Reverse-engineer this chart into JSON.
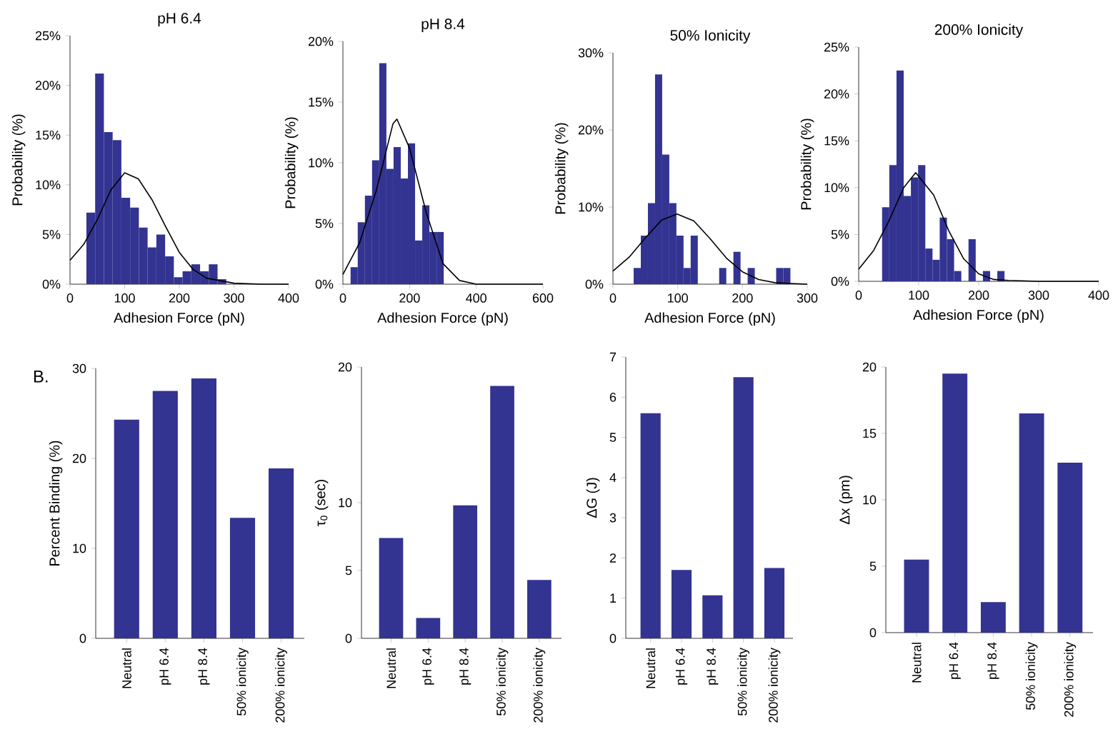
{
  "chart_data": [
    {
      "type": "histogram",
      "title": "pH 6.4",
      "xlabel": "Adhesion Force (pN)",
      "ylabel": "Probability (%)",
      "color": "#333391",
      "bins": [
        30,
        46,
        62,
        78,
        94,
        110,
        126,
        142,
        158,
        174,
        190,
        206,
        222,
        238,
        254,
        270,
        286
      ],
      "values": [
        7.2,
        21.2,
        15.3,
        14.5,
        8.7,
        7.7,
        5.7,
        3.7,
        5.0,
        2.8,
        0.7,
        1.3,
        2.0,
        1.3,
        2.0,
        0.5
      ],
      "series": [
        {
          "type": "line",
          "color": "#000000",
          "x": [
            0,
            25,
            50,
            75,
            100,
            125,
            150,
            175,
            200,
            225,
            250,
            300,
            350,
            400
          ],
          "values": [
            2.4,
            4.0,
            6.5,
            9.5,
            11.2,
            10.6,
            8.5,
            5.8,
            3.2,
            1.5,
            0.6,
            0.1,
            0,
            0
          ]
        }
      ],
      "xlim": [
        0,
        400
      ],
      "xticks": [
        0,
        100,
        200,
        300,
        400
      ],
      "ylim": [
        0,
        25
      ],
      "yticks": [
        {
          "value": 0,
          "label": "0%"
        },
        {
          "value": 5,
          "label": "5%"
        },
        {
          "value": 10,
          "label": "10%"
        },
        {
          "value": 15,
          "label": "15%"
        },
        {
          "value": 20,
          "label": "20%"
        },
        {
          "value": 25,
          "label": "25%"
        }
      ]
    },
    {
      "type": "histogram",
      "title": "pH 8.4",
      "xlabel": "Adhesion Force (pN)",
      "ylabel": "Probability (%)",
      "color": "#333391",
      "bins": [
        23,
        44.5,
        66,
        87.5,
        109,
        130.5,
        152,
        173.5,
        195,
        216.5,
        238,
        259.5,
        281,
        302.5
      ],
      "values": [
        1.4,
        5.1,
        7.3,
        10.2,
        18.2,
        9.5,
        11.3,
        8.7,
        11.6,
        3.6,
        6.5,
        4.3,
        4.3
      ],
      "series": [
        {
          "type": "line",
          "color": "#000000",
          "x": [
            0,
            50,
            100,
            150,
            162,
            200,
            250,
            300,
            350,
            400,
            500,
            600
          ],
          "values": [
            0.8,
            3.4,
            7.7,
            13.2,
            13.6,
            11.2,
            5.9,
            1.7,
            0.3,
            0,
            0,
            0
          ]
        }
      ],
      "xlim": [
        0,
        600
      ],
      "xticks": [
        0,
        200,
        400,
        600
      ],
      "ylim": [
        0,
        20
      ],
      "yticks": [
        {
          "value": 0,
          "label": "0%"
        },
        {
          "value": 5,
          "label": "5%"
        },
        {
          "value": 10,
          "label": "10%"
        },
        {
          "value": 15,
          "label": "15%"
        },
        {
          "value": 20,
          "label": "20%"
        }
      ]
    },
    {
      "type": "histogram",
      "title": "50% Ionicity",
      "xlabel": "Adhesion Force (pN)",
      "ylabel": "Probability (%)",
      "color": "#333391",
      "bins": [
        32,
        43,
        54,
        65,
        76,
        87,
        98,
        109,
        120,
        131,
        142,
        153,
        164,
        175,
        186,
        197,
        208,
        219,
        230,
        241,
        252,
        263,
        274
      ],
      "values": [
        2.1,
        6.3,
        10.5,
        27.2,
        16.8,
        10.5,
        6.3,
        2.1,
        6.3,
        0,
        0,
        0,
        2.1,
        0,
        4.2,
        0,
        2.1,
        0,
        0,
        0,
        2.1,
        2.1
      ],
      "series": [
        {
          "type": "line",
          "color": "#000000",
          "x": [
            0,
            25,
            50,
            75,
            99,
            125,
            150,
            175,
            200,
            225,
            250,
            275,
            300
          ],
          "values": [
            1.7,
            3.5,
            6.0,
            8.3,
            9.1,
            8.2,
            5.9,
            3.4,
            1.6,
            0.6,
            0.2,
            0.1,
            0
          ]
        }
      ],
      "xlim": [
        0,
        300
      ],
      "xticks": [
        0,
        100,
        200,
        300
      ],
      "ylim": [
        0,
        30
      ],
      "yticks": [
        {
          "value": 0,
          "label": "0%"
        },
        {
          "value": 10,
          "label": "10%"
        },
        {
          "value": 20,
          "label": "20%"
        },
        {
          "value": 30,
          "label": "30%"
        }
      ]
    },
    {
      "type": "histogram",
      "title": "200% Ionicity",
      "xlabel": "Adhesion Force (pN)",
      "ylabel": "Probability (%)",
      "color": "#333391",
      "bins": [
        39,
        51,
        63,
        75,
        87,
        99,
        111,
        123,
        135,
        147,
        159,
        171,
        183,
        195,
        207,
        219,
        231,
        243
      ],
      "values": [
        7.9,
        12.4,
        22.5,
        9.1,
        11.1,
        12.4,
        3.5,
        2.3,
        6.8,
        4.5,
        1.1,
        0,
        4.5,
        0,
        1.1,
        0,
        1.1
      ],
      "series": [
        {
          "type": "line",
          "color": "#000000",
          "x": [
            0,
            25,
            50,
            75,
            95,
            125,
            150,
            175,
            200,
            225,
            250,
            300,
            350,
            400
          ],
          "values": [
            1.3,
            3.3,
            6.4,
            10.0,
            11.6,
            9.2,
            5.4,
            2.4,
            0.8,
            0.2,
            0.1,
            0,
            0,
            0
          ]
        }
      ],
      "xlim": [
        0,
        400
      ],
      "xticks": [
        0,
        100,
        200,
        300,
        400
      ],
      "ylim": [
        0,
        25
      ],
      "yticks": [
        {
          "value": 0,
          "label": "0%"
        },
        {
          "value": 5,
          "label": "5%"
        },
        {
          "value": 10,
          "label": "10%"
        },
        {
          "value": 15,
          "label": "15%"
        },
        {
          "value": 20,
          "label": "20%"
        },
        {
          "value": 25,
          "label": "25%"
        }
      ]
    },
    {
      "type": "bar",
      "ylabel": "Percent Binding (%)",
      "annotations": [
        "B."
      ],
      "color": "#333391",
      "categories": [
        "Neutral",
        "pH 6.4",
        "pH 8.4",
        "50% ionicity",
        "200% ionicity"
      ],
      "values": [
        24.3,
        27.5,
        28.9,
        13.4,
        18.9
      ],
      "ylim": [
        0,
        30
      ],
      "yticks": [
        0,
        10,
        20,
        30
      ]
    },
    {
      "type": "bar",
      "ylabel": "τ$_{0}$ (sec)",
      "color": "#333391",
      "categories": [
        "Neutral",
        "pH 6.4",
        "pH 8.4",
        "50% ionicity",
        "200% ionicity"
      ],
      "values": [
        7.4,
        1.5,
        9.8,
        18.6,
        4.3
      ],
      "ylim": [
        0,
        20
      ],
      "yticks": [
        0,
        5,
        10,
        20
      ]
    },
    {
      "type": "bar",
      "ylabel": "ΔG (J)",
      "color": "#333391",
      "categories": [
        "Neutral",
        "pH 6.4",
        "pH 8.4",
        "50% ionicity",
        "200% ionicity"
      ],
      "values": [
        5.6,
        1.7,
        1.07,
        6.5,
        1.75
      ],
      "ylim": [
        0,
        7
      ],
      "yticks": [
        0,
        1,
        2,
        3,
        4,
        5,
        6,
        7
      ]
    },
    {
      "type": "bar",
      "ylabel": "Δx (pm)",
      "color": "#333391",
      "categories": [
        "Neutral",
        "pH 6.4",
        "pH 8.4",
        "50% ionicity",
        "200% ionicity"
      ],
      "values": [
        5.5,
        19.5,
        2.3,
        16.5,
        12.8
      ],
      "ylim": [
        0,
        20
      ],
      "yticks": [
        0,
        5,
        10,
        15,
        20
      ]
    }
  ]
}
